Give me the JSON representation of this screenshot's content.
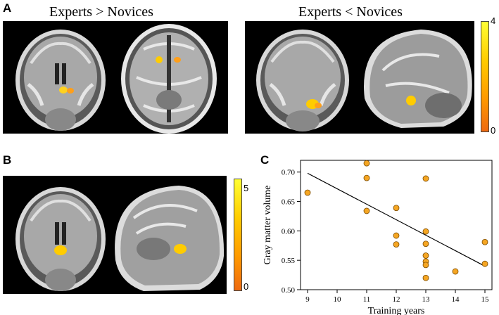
{
  "panels": {
    "a": {
      "letter": "A",
      "left_heading": "Experts > Novices",
      "right_heading": "Experts < Novices",
      "colorbar": {
        "max_label": "4",
        "min_label": "0"
      }
    },
    "b": {
      "letter": "B",
      "colorbar": {
        "max_label": "5",
        "min_label": "0"
      }
    },
    "c": {
      "letter": "C"
    }
  },
  "colors": {
    "accent_high": "#ffff33",
    "accent_low": "#ee6a10",
    "point_fill": "#f5a623",
    "point_stroke": "#7a4a00"
  },
  "chart_data": {
    "type": "scatter",
    "xlabel": "Training years",
    "ylabel": "Gray matter volume",
    "xlim": [
      9,
      15
    ],
    "ylim": [
      0.5,
      0.72
    ],
    "xticks": [
      9,
      10,
      11,
      12,
      13,
      14,
      15
    ],
    "yticks": [
      "0.50",
      "0.55",
      "0.60",
      "0.65",
      "0.70"
    ],
    "points": [
      {
        "x": 9,
        "y": 0.665
      },
      {
        "x": 11,
        "y": 0.715
      },
      {
        "x": 11,
        "y": 0.69
      },
      {
        "x": 11,
        "y": 0.634
      },
      {
        "x": 12,
        "y": 0.639
      },
      {
        "x": 12,
        "y": 0.592
      },
      {
        "x": 12,
        "y": 0.577
      },
      {
        "x": 13,
        "y": 0.689
      },
      {
        "x": 13,
        "y": 0.599
      },
      {
        "x": 13,
        "y": 0.578
      },
      {
        "x": 13,
        "y": 0.558
      },
      {
        "x": 13,
        "y": 0.548
      },
      {
        "x": 13,
        "y": 0.542
      },
      {
        "x": 13,
        "y": 0.52
      },
      {
        "x": 14,
        "y": 0.531
      },
      {
        "x": 15,
        "y": 0.581
      },
      {
        "x": 15,
        "y": 0.544
      }
    ],
    "fit_line": [
      {
        "x": 9,
        "y": 0.698
      },
      {
        "x": 15,
        "y": 0.54
      }
    ],
    "grid": false
  }
}
